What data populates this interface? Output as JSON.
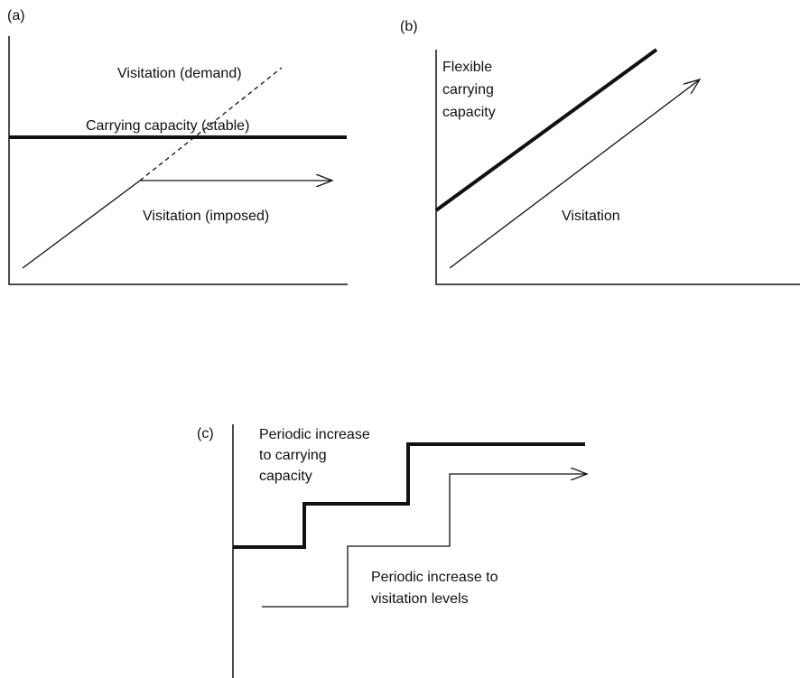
{
  "panels": [
    {
      "label": "(a)",
      "annotations": [
        "Visitation (demand)",
        "Carrying capacity (stable)",
        "Visitation (imposed)"
      ]
    },
    {
      "label": "(b)",
      "annotations": [
        [
          "Flexible",
          "carrying",
          "capacity"
        ],
        "Visitation"
      ]
    },
    {
      "label": "(c)",
      "annotations": [
        [
          "Periodic increase",
          "to carrying",
          "capacity"
        ],
        [
          "Periodic increase to",
          "visitation levels"
        ]
      ]
    }
  ]
}
